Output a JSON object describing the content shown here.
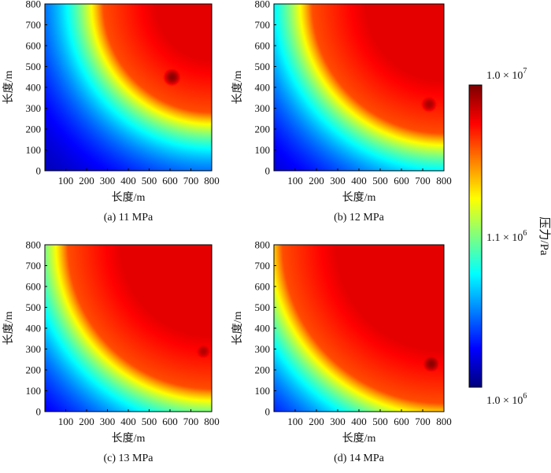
{
  "chart_data": [
    {
      "type": "heatmap",
      "caption": "(a) 11 MPa",
      "xlabel": "长度/m",
      "ylabel": "长度/m",
      "xlim": [
        0,
        800
      ],
      "ylim": [
        0,
        800
      ],
      "xticks": [
        100,
        200,
        300,
        400,
        500,
        600,
        700,
        800
      ],
      "yticks": [
        0,
        100,
        200,
        300,
        400,
        500,
        600,
        700,
        800
      ],
      "x_tick_labels": [
        "100",
        "200",
        "300",
        "400",
        "500",
        "600",
        "700",
        "800"
      ],
      "y_tick_labels": [
        "0",
        "100",
        "200",
        "300",
        "400",
        "500",
        "600",
        "700",
        "800"
      ],
      "pressure_field": {
        "front_radius_m": 520,
        "front_center_m": [
          800,
          800
        ],
        "hotspot_m": [
          610,
          450
        ],
        "hotspot_level": 1.0
      }
    },
    {
      "type": "heatmap",
      "caption": "(b) 12 MPa",
      "xlabel": "长度/m",
      "ylabel": "长度/m",
      "xlim": [
        0,
        800
      ],
      "ylim": [
        0,
        800
      ],
      "xticks": [
        100,
        200,
        300,
        400,
        500,
        600,
        700,
        800
      ],
      "yticks": [
        0,
        100,
        200,
        300,
        400,
        500,
        600,
        700,
        800
      ],
      "x_tick_labels": [
        "100",
        "200",
        "300",
        "400",
        "500",
        "600",
        "700",
        "800"
      ],
      "y_tick_labels": [
        "0",
        "100",
        "200",
        "300",
        "400",
        "500",
        "600",
        "700",
        "800"
      ],
      "pressure_field": {
        "front_radius_m": 620,
        "front_center_m": [
          800,
          800
        ],
        "hotspot_m": [
          730,
          320
        ],
        "hotspot_level": 0.97
      }
    },
    {
      "type": "heatmap",
      "caption": "(c) 13 MPa",
      "xlabel": "长度/m",
      "ylabel": "长度/m",
      "xlim": [
        0,
        800
      ],
      "ylim": [
        0,
        800
      ],
      "xticks": [
        100,
        200,
        300,
        400,
        500,
        600,
        700,
        800
      ],
      "yticks": [
        0,
        100,
        200,
        300,
        400,
        500,
        600,
        700,
        800
      ],
      "x_tick_labels": [
        "100",
        "200",
        "300",
        "400",
        "500",
        "600",
        "700",
        "800"
      ],
      "y_tick_labels": [
        "0",
        "100",
        "200",
        "300",
        "400",
        "500",
        "600",
        "700",
        "800"
      ],
      "pressure_field": {
        "front_radius_m": 690,
        "front_center_m": [
          800,
          800
        ],
        "hotspot_m": [
          760,
          290
        ],
        "hotspot_level": 0.96
      }
    },
    {
      "type": "heatmap",
      "caption": "(d) 14 MPa",
      "xlabel": "长度/m",
      "ylabel": "长度/m",
      "xlim": [
        0,
        800
      ],
      "ylim": [
        0,
        800
      ],
      "xticks": [
        100,
        200,
        300,
        400,
        500,
        600,
        700,
        800
      ],
      "yticks": [
        0,
        100,
        200,
        300,
        400,
        500,
        600,
        700,
        800
      ],
      "x_tick_labels": [
        "100",
        "200",
        "300",
        "400",
        "500",
        "600",
        "700",
        "800"
      ],
      "y_tick_labels": [
        "0",
        "100",
        "200",
        "300",
        "400",
        "500",
        "600",
        "700",
        "800"
      ],
      "pressure_field": {
        "front_radius_m": 760,
        "front_center_m": [
          800,
          800
        ],
        "hotspot_m": [
          740,
          230
        ],
        "hotspot_level": 1.0
      }
    }
  ],
  "colorbar": {
    "label": "压力/Pa",
    "scale": "log",
    "colormap": "jet",
    "range": [
      1000000,
      10000000
    ],
    "ticks": [
      {
        "mantissa": "1.0",
        "exponent": "7"
      },
      {
        "mantissa": "1.1",
        "exponent": "6"
      },
      {
        "mantissa": "1.0",
        "exponent": "6"
      }
    ]
  }
}
